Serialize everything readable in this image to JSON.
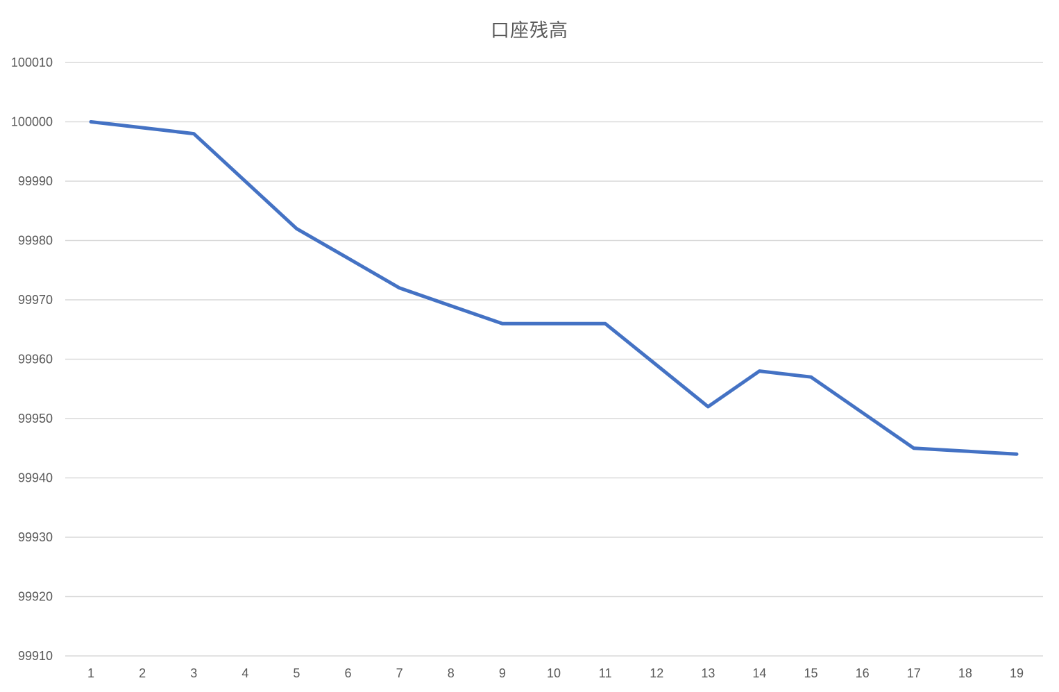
{
  "chart_data": {
    "type": "line",
    "title": "口座残高",
    "xlabel": "",
    "ylabel": "",
    "categories": [
      "1",
      "2",
      "3",
      "4",
      "5",
      "6",
      "7",
      "8",
      "9",
      "10",
      "11",
      "12",
      "13",
      "14",
      "15",
      "16",
      "17",
      "18",
      "19"
    ],
    "series": [
      {
        "values": [
          100000,
          99999,
          99998,
          99990,
          99982,
          99977,
          99972,
          99969,
          99966,
          99966,
          99966,
          99959,
          99952,
          99958,
          99957,
          99951,
          99945,
          99944.5,
          99944
        ],
        "color": "#4472c4"
      }
    ],
    "ylim": [
      99910,
      100010
    ],
    "yticks": [
      99910,
      99920,
      99930,
      99940,
      99950,
      99960,
      99970,
      99980,
      99990,
      100000,
      100010
    ],
    "grid": true,
    "legend": "none"
  }
}
